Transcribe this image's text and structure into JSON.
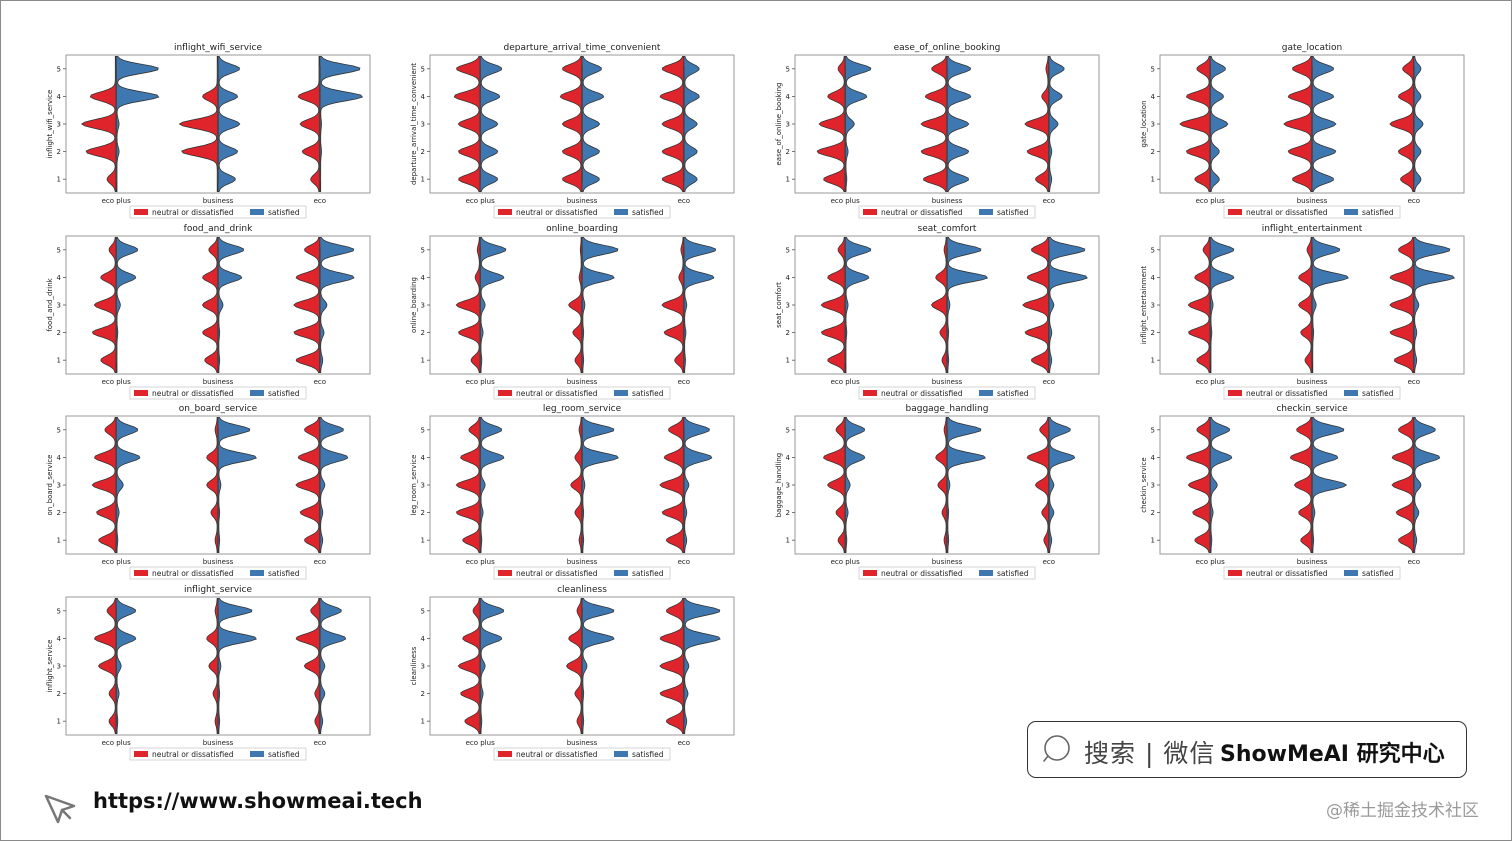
{
  "chart_data": {
    "type": "violin",
    "split": true,
    "categories": [
      "eco plus",
      "business",
      "eco"
    ],
    "legend": [
      "neutral or dissatisfied",
      "satisfied"
    ],
    "colors": {
      "neutral or dissatisfied": "#e0242b",
      "satisfied": "#3f78b0"
    },
    "ylim": [
      0.5,
      5.5
    ],
    "yticks": [
      1,
      2,
      3,
      4,
      5
    ],
    "panels": [
      {
        "title": "inflight_wifi_service",
        "ylabel": "inflight_wifi_service",
        "neutral": [
          [
            0.2,
            0.7,
            0.8,
            0.6,
            0.0
          ],
          [
            0.0,
            0.85,
            0.9,
            0.35,
            0.0
          ],
          [
            0.2,
            0.4,
            0.45,
            0.5,
            0.0
          ]
        ],
        "satisfied": [
          [
            0.0,
            0.05,
            0.05,
            1.0,
            1.0
          ],
          [
            0.4,
            0.45,
            0.5,
            0.45,
            0.5
          ],
          [
            0.0,
            0.02,
            0.02,
            1.0,
            0.95
          ]
        ]
      },
      {
        "title": "departure_arrival_time_convenient",
        "ylabel": "departure_arrival_time_convenient",
        "neutral": [
          [
            0.5,
            0.5,
            0.5,
            0.6,
            0.55
          ],
          [
            0.45,
            0.45,
            0.45,
            0.5,
            0.45
          ],
          [
            0.5,
            0.5,
            0.5,
            0.55,
            0.5
          ]
        ],
        "satisfied": [
          [
            0.4,
            0.4,
            0.4,
            0.45,
            0.5
          ],
          [
            0.4,
            0.4,
            0.4,
            0.5,
            0.45
          ],
          [
            0.3,
            0.3,
            0.3,
            0.35,
            0.35
          ]
        ]
      },
      {
        "title": "ease_of_online_booking",
        "ylabel": "ease_of_online_booking",
        "neutral": [
          [
            0.5,
            0.65,
            0.6,
            0.4,
            0.15
          ],
          [
            0.55,
            0.6,
            0.6,
            0.5,
            0.35
          ],
          [
            0.3,
            0.5,
            0.55,
            0.15,
            0.05
          ]
        ],
        "satisfied": [
          [
            0.02,
            0.05,
            0.2,
            0.5,
            0.6
          ],
          [
            0.5,
            0.5,
            0.5,
            0.55,
            0.55
          ],
          [
            0.05,
            0.05,
            0.2,
            0.3,
            0.35
          ]
        ]
      },
      {
        "title": "gate_location",
        "ylabel": "gate_location",
        "neutral": [
          [
            0.35,
            0.55,
            0.7,
            0.55,
            0.3
          ],
          [
            0.45,
            0.55,
            0.65,
            0.55,
            0.45
          ],
          [
            0.3,
            0.35,
            0.55,
            0.35,
            0.25
          ]
        ],
        "satisfied": [
          [
            0.2,
            0.2,
            0.4,
            0.3,
            0.35
          ],
          [
            0.5,
            0.55,
            0.55,
            0.5,
            0.5
          ],
          [
            0.15,
            0.15,
            0.2,
            0.15,
            0.15
          ]
        ]
      },
      {
        "title": "food_and_drink",
        "ylabel": "food_and_drink",
        "neutral": [
          [
            0.35,
            0.55,
            0.5,
            0.35,
            0.15
          ],
          [
            0.3,
            0.35,
            0.35,
            0.35,
            0.2
          ],
          [
            0.55,
            0.6,
            0.6,
            0.55,
            0.35
          ]
        ],
        "satisfied": [
          [
            0.0,
            0.02,
            0.08,
            0.45,
            0.5
          ],
          [
            0.02,
            0.02,
            0.1,
            0.55,
            0.6
          ],
          [
            0.05,
            0.08,
            0.15,
            0.8,
            0.8
          ]
        ]
      },
      {
        "title": "online_boarding",
        "ylabel": "online_boarding",
        "neutral": [
          [
            0.2,
            0.5,
            0.55,
            0.1,
            0.05
          ],
          [
            0.15,
            0.2,
            0.3,
            0.05,
            0.02
          ],
          [
            0.2,
            0.45,
            0.5,
            0.1,
            0.05
          ]
        ],
        "satisfied": [
          [
            0.02,
            0.05,
            0.1,
            0.55,
            0.6
          ],
          [
            0.02,
            0.02,
            0.05,
            0.75,
            0.85
          ],
          [
            0.02,
            0.03,
            0.05,
            0.7,
            0.75
          ]
        ]
      },
      {
        "title": "seat_comfort",
        "ylabel": "seat_comfort",
        "neutral": [
          [
            0.4,
            0.55,
            0.55,
            0.4,
            0.15
          ],
          [
            0.1,
            0.15,
            0.35,
            0.25,
            0.05
          ],
          [
            0.4,
            0.55,
            0.6,
            0.5,
            0.4
          ]
        ],
        "satisfied": [
          [
            0.0,
            0.02,
            0.05,
            0.55,
            0.6
          ],
          [
            0.02,
            0.02,
            0.05,
            0.95,
            0.8
          ],
          [
            0.05,
            0.05,
            0.1,
            0.9,
            0.85
          ]
        ]
      },
      {
        "title": "inflight_entertainment",
        "ylabel": "inflight_entertainment",
        "neutral": [
          [
            0.3,
            0.5,
            0.5,
            0.35,
            0.15
          ],
          [
            0.15,
            0.25,
            0.3,
            0.3,
            0.1
          ],
          [
            0.45,
            0.55,
            0.55,
            0.55,
            0.35
          ]
        ],
        "satisfied": [
          [
            0.0,
            0.02,
            0.05,
            0.55,
            0.55
          ],
          [
            0.0,
            0.02,
            0.08,
            0.85,
            0.65
          ],
          [
            0.05,
            0.05,
            0.1,
            0.95,
            0.85
          ]
        ]
      },
      {
        "title": "on_board_service",
        "ylabel": "on_board_service",
        "neutral": [
          [
            0.4,
            0.45,
            0.55,
            0.5,
            0.25
          ],
          [
            0.05,
            0.15,
            0.25,
            0.25,
            0.05
          ],
          [
            0.35,
            0.45,
            0.55,
            0.5,
            0.35
          ]
        ],
        "satisfied": [
          [
            0.02,
            0.05,
            0.15,
            0.55,
            0.5
          ],
          [
            0.02,
            0.02,
            0.05,
            0.9,
            0.75
          ],
          [
            0.05,
            0.05,
            0.1,
            0.65,
            0.55
          ]
        ]
      },
      {
        "title": "leg_room_service",
        "ylabel": "leg_room_service",
        "neutral": [
          [
            0.4,
            0.55,
            0.55,
            0.45,
            0.25
          ],
          [
            0.05,
            0.15,
            0.25,
            0.15,
            0.05
          ],
          [
            0.4,
            0.5,
            0.55,
            0.45,
            0.35
          ]
        ],
        "satisfied": [
          [
            0.02,
            0.05,
            0.1,
            0.55,
            0.5
          ],
          [
            0.02,
            0.02,
            0.05,
            0.85,
            0.75
          ],
          [
            0.05,
            0.05,
            0.1,
            0.65,
            0.6
          ]
        ]
      },
      {
        "title": "baggage_handling",
        "ylabel": "baggage_handling",
        "neutral": [
          [
            0.15,
            0.2,
            0.4,
            0.5,
            0.2
          ],
          [
            0.05,
            0.1,
            0.2,
            0.25,
            0.05
          ],
          [
            0.1,
            0.15,
            0.3,
            0.5,
            0.2
          ]
        ],
        "satisfied": [
          [
            0.02,
            0.05,
            0.1,
            0.45,
            0.45
          ],
          [
            0.02,
            0.02,
            0.05,
            0.9,
            0.8
          ],
          [
            0.05,
            0.1,
            0.1,
            0.6,
            0.5
          ]
        ]
      },
      {
        "title": "checkin_service",
        "ylabel": "checkin_service",
        "neutral": [
          [
            0.35,
            0.4,
            0.5,
            0.55,
            0.3
          ],
          [
            0.25,
            0.3,
            0.4,
            0.5,
            0.35
          ],
          [
            0.35,
            0.4,
            0.5,
            0.5,
            0.35
          ]
        ],
        "satisfied": [
          [
            0.02,
            0.05,
            0.15,
            0.5,
            0.45
          ],
          [
            0.02,
            0.05,
            0.8,
            0.6,
            0.75
          ],
          [
            0.05,
            0.1,
            0.15,
            0.6,
            0.5
          ]
        ]
      },
      {
        "title": "inflight_service",
        "ylabel": "inflight_service",
        "neutral": [
          [
            0.15,
            0.15,
            0.4,
            0.5,
            0.2
          ],
          [
            0.05,
            0.1,
            0.2,
            0.25,
            0.05
          ],
          [
            0.1,
            0.1,
            0.35,
            0.55,
            0.2
          ]
        ],
        "satisfied": [
          [
            0.02,
            0.05,
            0.1,
            0.45,
            0.45
          ],
          [
            0.02,
            0.02,
            0.05,
            0.9,
            0.8
          ],
          [
            0.05,
            0.1,
            0.1,
            0.6,
            0.5
          ]
        ]
      },
      {
        "title": "cleanliness",
        "ylabel": "cleanliness",
        "neutral": [
          [
            0.35,
            0.45,
            0.5,
            0.4,
            0.15
          ],
          [
            0.1,
            0.15,
            0.35,
            0.3,
            0.1
          ],
          [
            0.4,
            0.55,
            0.55,
            0.55,
            0.4
          ]
        ],
        "satisfied": [
          [
            0.02,
            0.05,
            0.1,
            0.5,
            0.55
          ],
          [
            0.02,
            0.02,
            0.1,
            0.75,
            0.75
          ],
          [
            0.05,
            0.08,
            0.1,
            0.85,
            0.85
          ]
        ]
      }
    ]
  },
  "footer": {
    "search_text": "搜索 | 微信",
    "brand": "ShowMeAI 研究中心",
    "url": "https://www.showmeai.tech",
    "watermark": "@稀土掘金技术社区"
  }
}
